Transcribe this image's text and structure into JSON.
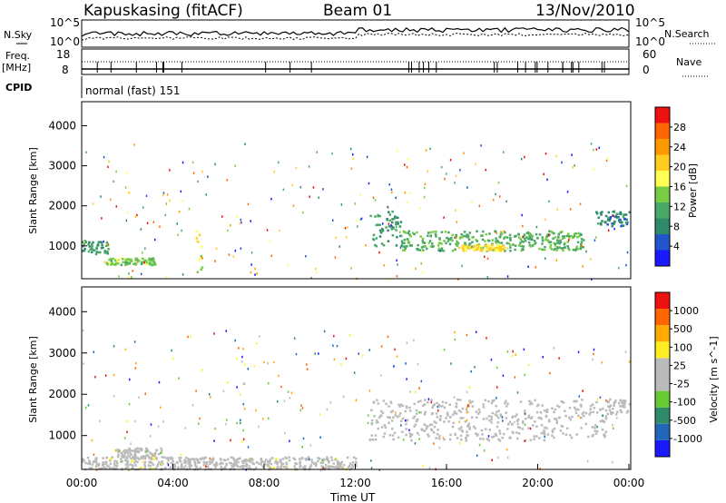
{
  "header": {
    "station": "Kapuskasing (fitACF)",
    "beam": "Beam 01",
    "date": "13/Nov/2010"
  },
  "noise_panel": {
    "left_label": "N.Sky",
    "right_label": "N.Search",
    "ticks": [
      "10^5",
      "10^0"
    ],
    "right_ticks": [
      "10^5",
      "10^0"
    ]
  },
  "freq_panel": {
    "left_label_1": "Freq.",
    "left_label_2": "[MHz]",
    "left_label_3": "CPID",
    "left_ticks": [
      "18",
      "8"
    ],
    "right_label": "Nave",
    "right_ticks": [
      "60",
      "0"
    ]
  },
  "cpid_text": "normal (fast) 151",
  "x_axis": {
    "label": "Time UT",
    "ticks": [
      "00:00",
      "04:00",
      "08:00",
      "12:00",
      "16:00",
      "20:00",
      "00:00"
    ]
  },
  "power_panel": {
    "ylabel": "Slant Range [km]",
    "yticks": [
      "4000",
      "3000",
      "2000",
      "1000"
    ],
    "colorbar_label": "Power [dB]",
    "colorbar_ticks": [
      "28",
      "24",
      "20",
      "16",
      "12",
      "8",
      "4"
    ],
    "colors": [
      "#1a1aff",
      "#2255cc",
      "#2f8a6a",
      "#4aa866",
      "#77cc44",
      "#ffff55",
      "#ffcc22",
      "#ff9900",
      "#ff6600",
      "#ee1111"
    ]
  },
  "velocity_panel": {
    "ylabel": "Slant Range [km]",
    "yticks": [
      "4000",
      "3000",
      "2000",
      "1000"
    ],
    "colorbar_label": "Velocity [m s^-1]",
    "colorbar_ticks": [
      "1000",
      "500",
      "100",
      "25",
      "-25",
      "-100",
      "-500",
      "-1000"
    ],
    "colors": [
      "#1a1aff",
      "#2266bb",
      "#2f8a6a",
      "#66cc33",
      "#bbbbbb",
      "#bbbbbb",
      "#ffee22",
      "#ffaa00",
      "#ff6600",
      "#ee1111"
    ]
  },
  "chart_data": [
    {
      "type": "heatmap",
      "title": "Power",
      "x": {
        "range_hours": [
          0,
          24
        ]
      },
      "y": {
        "range_km": [
          180,
          4600
        ]
      },
      "colorbar": {
        "label": "Power [dB]",
        "range": [
          0,
          32
        ]
      },
      "regions": [
        {
          "t": [
            0.0,
            1.2
          ],
          "r": [
            820,
            1150
          ],
          "v": 10
        },
        {
          "t": [
            1.0,
            3.2
          ],
          "r": [
            550,
            720
          ],
          "v": 14
        },
        {
          "t": [
            5.0,
            5.3
          ],
          "r": [
            300,
            1400
          ],
          "v": 18
        },
        {
          "t": [
            12.6,
            14.0
          ],
          "r": [
            1000,
            1900
          ],
          "v": 10
        },
        {
          "t": [
            14.0,
            22.0
          ],
          "r": [
            900,
            1400
          ],
          "v": 12
        },
        {
          "t": [
            16.5,
            18.5
          ],
          "r": [
            900,
            1050
          ],
          "v": 20
        },
        {
          "t": [
            22.5,
            24.0
          ],
          "r": [
            1500,
            1900
          ],
          "v": 8
        }
      ]
    },
    {
      "type": "heatmap",
      "title": "Velocity",
      "x": {
        "range_hours": [
          0,
          24
        ]
      },
      "y": {
        "range_km": [
          180,
          4600
        ]
      },
      "colorbar": {
        "label": "Velocity [m s^-1]",
        "range": [
          -1000,
          1000
        ]
      },
      "regions": [
        {
          "t": [
            1.5,
            3.5
          ],
          "r": [
            500,
            720
          ],
          "v": -80
        },
        {
          "t": [
            0.0,
            12.0
          ],
          "r": [
            200,
            500
          ],
          "v": 60
        },
        {
          "t": [
            12.6,
            23.0
          ],
          "r": [
            900,
            1900
          ],
          "v": 0
        },
        {
          "t": [
            23.0,
            24.0
          ],
          "r": [
            1500,
            1900
          ],
          "v": 0
        }
      ]
    }
  ]
}
